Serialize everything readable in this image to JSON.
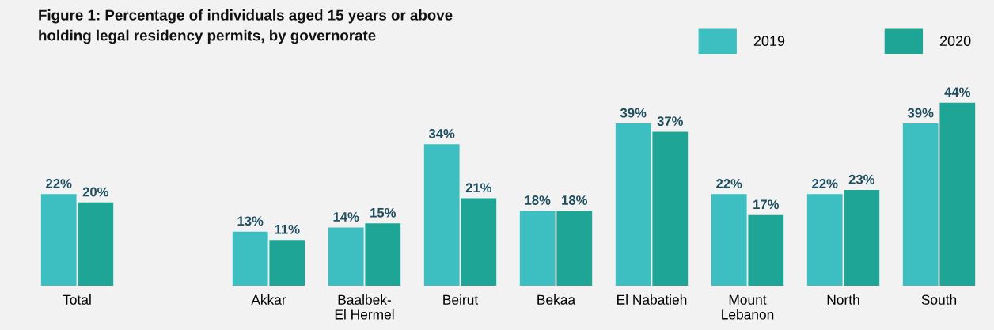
{
  "chart_data": {
    "type": "bar",
    "title": "Figure 1: Percentage of individuals aged 15 years or above\nholding legal residency permits, by governorate",
    "categories": [
      "Total",
      null,
      "Akkar",
      "Baalbek-\nEl Hermel",
      "Beirut",
      "Bekaa",
      "El Nabatieh",
      "Mount\nLebanon",
      "North",
      "South"
    ],
    "series": [
      {
        "name": "2019",
        "color": "#3dbfc1",
        "values": [
          22,
          null,
          13,
          14,
          34,
          18,
          39,
          22,
          22,
          39
        ],
        "value_labels": [
          "22%",
          null,
          "13%",
          "14%",
          "34%",
          "18%",
          "39%",
          "22%",
          "22%",
          "39%"
        ]
      },
      {
        "name": "2020",
        "color": "#1fa596",
        "values": [
          20,
          null,
          11,
          15,
          21,
          18,
          37,
          17,
          23,
          44
        ],
        "value_labels": [
          "20%",
          null,
          "11%",
          "15%",
          "21%",
          "18%",
          "37%",
          "17%",
          "23%",
          "44%"
        ]
      }
    ],
    "legend": "top right",
    "grid": false
  }
}
